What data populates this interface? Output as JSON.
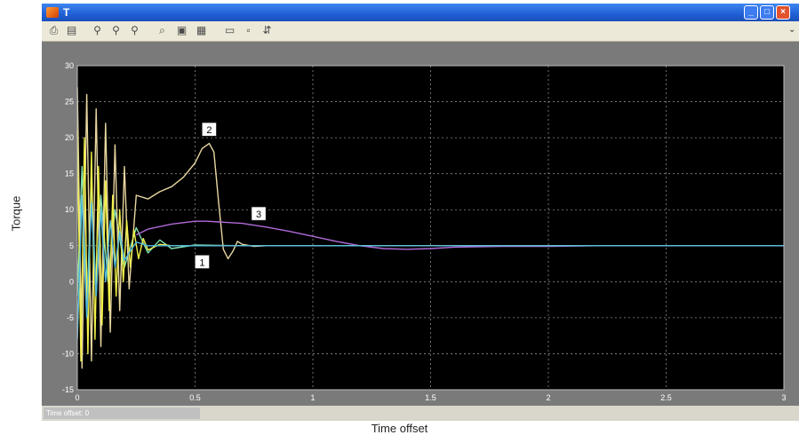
{
  "window": {
    "title": "T",
    "controls": {
      "minimize": "minimize-icon",
      "maximize": "maximize-icon",
      "close": "close-icon"
    }
  },
  "toolbar": {
    "icons": [
      "print-icon",
      "print-preview-icon",
      "zoom-in-icon",
      "zoom-out-icon",
      "zoom-x-icon",
      "find-icon",
      "restore-view-icon",
      "save-axes-icon",
      "parameters-icon",
      "lock-icon",
      "legend-icon"
    ]
  },
  "axis_labels": {
    "y": "Torque",
    "x": "Time offset"
  },
  "status": {
    "text": "Time offset:  0"
  },
  "colors": {
    "plot_background": "#000000",
    "axes_frame": "#7a7a7a",
    "tick_text": "#ffffff",
    "grid": "#8a8a8a"
  },
  "chart_data": {
    "type": "line",
    "xlabel": "Time offset",
    "ylabel": "Torque",
    "xlim": [
      0,
      3
    ],
    "ylim": [
      -15,
      30
    ],
    "x_ticks": [
      "0",
      "0.5",
      "1",
      "1.5",
      "2",
      "2.5",
      "3"
    ],
    "y_ticks": [
      "30",
      "25",
      "20",
      "15",
      "10",
      "5",
      "0",
      "-5",
      "-10",
      "-15"
    ],
    "grid": true,
    "annotations": [
      {
        "text": "1",
        "x": 0.53,
        "y": 2.7
      },
      {
        "text": "2",
        "x": 0.56,
        "y": 21.1
      },
      {
        "text": "3",
        "x": 0.77,
        "y": 9.4
      }
    ],
    "series": [
      {
        "label": "1",
        "color": "#7fe0b0",
        "x": [
          0,
          0.02,
          0.04,
          0.06,
          0.08,
          0.1,
          0.13,
          0.16,
          0.2,
          0.25,
          0.3,
          0.35,
          0.4,
          0.5,
          0.7,
          1.0,
          3.0
        ],
        "y": [
          -2,
          16,
          -4,
          14,
          -2,
          12,
          0,
          10,
          2,
          7.5,
          4,
          5.8,
          4.6,
          5.1,
          5.0,
          5.0,
          5.0
        ]
      },
      {
        "label": "2",
        "color": "#e8d6a0",
        "x": [
          0,
          0.02,
          0.04,
          0.06,
          0.08,
          0.1,
          0.12,
          0.14,
          0.16,
          0.18,
          0.2,
          0.22,
          0.25,
          0.3,
          0.35,
          0.4,
          0.45,
          0.5,
          0.53,
          0.56,
          0.58,
          0.6,
          0.62,
          0.64,
          0.66,
          0.68,
          0.7,
          0.75,
          0.8,
          1.0,
          3.0
        ],
        "y": [
          27,
          -12,
          26,
          -11,
          24,
          -9,
          22,
          -7,
          19,
          -4,
          16,
          -1,
          12,
          11.5,
          12.5,
          13.2,
          14.5,
          16.5,
          18.5,
          19.2,
          18.0,
          11,
          4.5,
          3.2,
          4.2,
          5.6,
          5.2,
          4.9,
          5.0,
          5.0,
          5.0
        ]
      },
      {
        "label": "3",
        "color": "#b06ad8",
        "x": [
          0.25,
          0.3,
          0.4,
          0.5,
          0.55,
          0.6,
          0.7,
          0.8,
          0.9,
          1.0,
          1.1,
          1.2,
          1.3,
          1.4,
          1.5,
          1.6,
          1.8,
          2.0,
          2.2,
          3.0
        ],
        "y": [
          6.5,
          7.3,
          8.0,
          8.4,
          8.4,
          8.3,
          8.1,
          7.6,
          7.0,
          6.3,
          5.6,
          5.0,
          4.6,
          4.5,
          4.6,
          4.8,
          4.9,
          4.9,
          5.0,
          5.0
        ]
      },
      {
        "label": "",
        "color": "#f2f24a",
        "x": [
          0,
          0.015,
          0.03,
          0.045,
          0.06,
          0.075,
          0.09,
          0.105,
          0.12,
          0.135,
          0.15,
          0.165,
          0.18,
          0.195,
          0.21,
          0.225,
          0.24,
          0.26,
          0.28,
          0.3,
          0.35,
          0.4,
          3.0
        ],
        "y": [
          21,
          -11,
          20,
          -10,
          18,
          -8,
          16,
          -6,
          14,
          -4,
          12,
          -2,
          10,
          0,
          8.5,
          2,
          7.2,
          3.2,
          6.0,
          4.4,
          5.2,
          5.0,
          5.0
        ]
      },
      {
        "label": "",
        "color": "#4fb8e0",
        "x": [
          0,
          0.02,
          0.04,
          0.06,
          0.08,
          0.1,
          0.12,
          0.14,
          0.16,
          0.18,
          0.2,
          0.25,
          0.3,
          3.0
        ],
        "y": [
          -8,
          12,
          -5,
          11,
          -2,
          10,
          0,
          8.5,
          2,
          7,
          3,
          5.5,
          5.0,
          5.0
        ]
      }
    ]
  }
}
